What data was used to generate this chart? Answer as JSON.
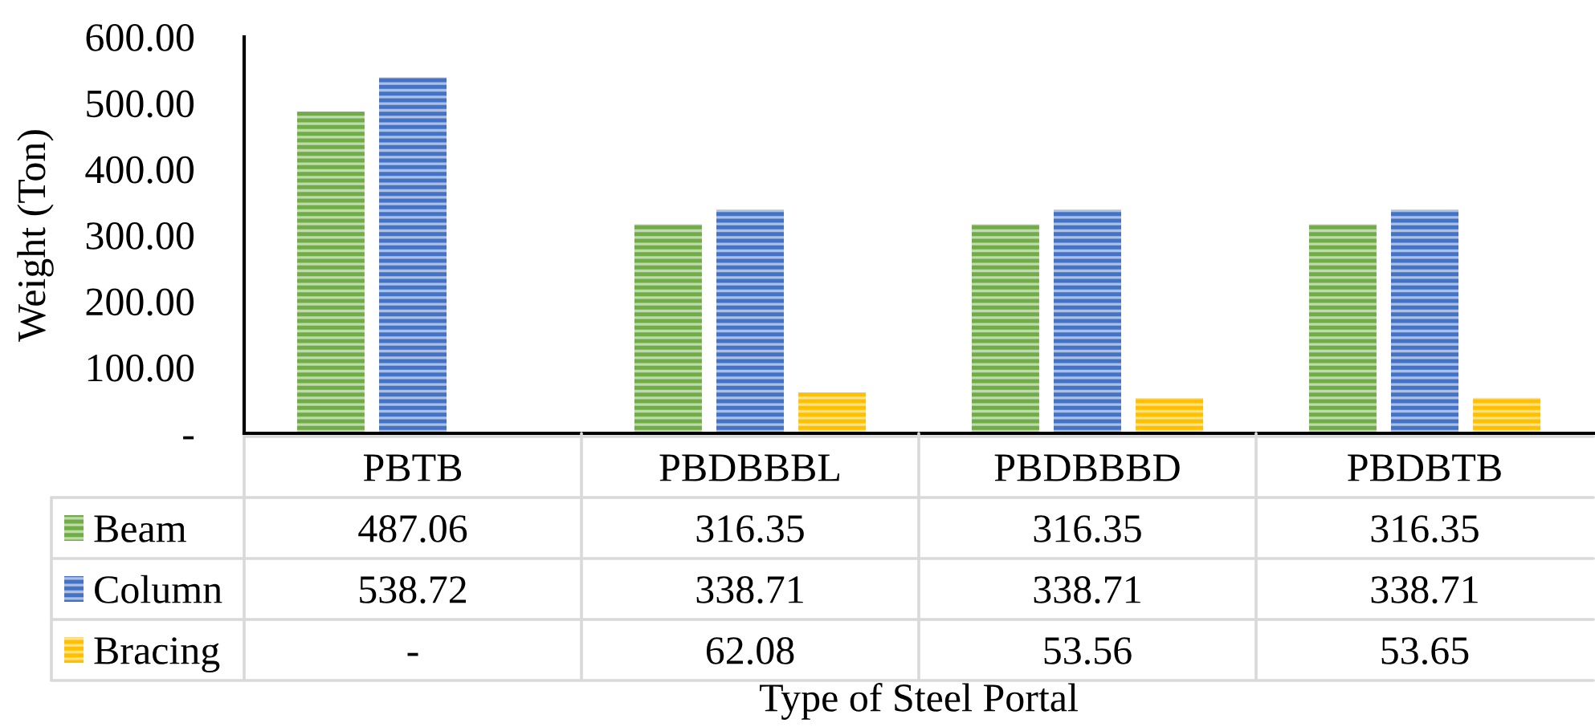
{
  "chart_data": {
    "type": "bar",
    "ylabel": "Weight (Ton)",
    "annotations": [
      "Type of Steel Portal"
    ],
    "categories": [
      "PBTB",
      "PBDBBBL",
      "PBDBBBD",
      "PBDBTB"
    ],
    "series": [
      {
        "name": "Beam",
        "color": "#70ad47",
        "values": [
          487.06,
          316.35,
          316.35,
          316.35
        ],
        "value_labels": [
          "487.06",
          "316.35",
          "316.35",
          "316.35"
        ]
      },
      {
        "name": "Column",
        "color": "#4472c4",
        "values": [
          538.72,
          338.71,
          338.71,
          338.71
        ],
        "value_labels": [
          "538.72",
          "338.71",
          "338.71",
          "338.71"
        ]
      },
      {
        "name": "Bracing",
        "color": "#ffc000",
        "values": [
          null,
          62.08,
          53.56,
          53.65
        ],
        "value_labels": [
          "-",
          "62.08",
          "53.56",
          "53.65"
        ]
      }
    ],
    "ylim": [
      0,
      600
    ],
    "yticks": [
      {
        "value": 0,
        "label": "-"
      },
      {
        "value": 100,
        "label": "100.00"
      },
      {
        "value": 200,
        "label": "200.00"
      },
      {
        "value": 300,
        "label": "300.00"
      },
      {
        "value": 400,
        "label": "400.00"
      },
      {
        "value": 500,
        "label": "500.00"
      },
      {
        "value": 600,
        "label": "600.00"
      }
    ],
    "legend": "bottom"
  }
}
